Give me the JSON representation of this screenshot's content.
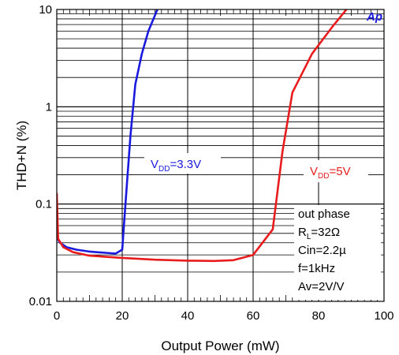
{
  "chart_data": {
    "type": "line",
    "xlabel": "Output Power (mW)",
    "ylabel": "THD+N (%)",
    "xlim": [
      0,
      100
    ],
    "ylim": [
      0.01,
      10
    ],
    "y_scale": "log",
    "grid": true,
    "x_ticks": [
      "0",
      "20",
      "40",
      "60",
      "80",
      "100"
    ],
    "y_ticks": [
      {
        "value": 0.01,
        "label": "0.01"
      },
      {
        "value": 0.1,
        "label": "0.1"
      },
      {
        "value": 1,
        "label": "1"
      },
      {
        "value": 10,
        "label": "10"
      }
    ],
    "series": [
      {
        "name_main": "V",
        "name_sub": "DD",
        "name_rest": "=3.3V",
        "color": "#1a1adf",
        "points": [
          [
            0,
            0.045
          ],
          [
            1,
            0.04
          ],
          [
            3,
            0.036
          ],
          [
            6,
            0.034
          ],
          [
            10,
            0.0325
          ],
          [
            15,
            0.0315
          ],
          [
            18,
            0.031
          ],
          [
            20,
            0.034
          ],
          [
            21,
            0.1
          ],
          [
            22.5,
            0.5
          ],
          [
            24,
            1.7
          ],
          [
            26,
            3.5
          ],
          [
            28,
            6
          ],
          [
            31,
            10.5
          ]
        ]
      },
      {
        "name_main": "V",
        "name_sub": "DD",
        "name_rest": "=5V",
        "color": "#e81c1c",
        "points": [
          [
            0,
            0.13
          ],
          [
            0.4,
            0.044
          ],
          [
            2,
            0.036
          ],
          [
            5,
            0.032
          ],
          [
            10,
            0.0295
          ],
          [
            20,
            0.028
          ],
          [
            30,
            0.0268
          ],
          [
            40,
            0.0262
          ],
          [
            48,
            0.026
          ],
          [
            54,
            0.0265
          ],
          [
            60,
            0.03
          ],
          [
            66,
            0.055
          ],
          [
            69,
            0.35
          ],
          [
            72,
            1.4
          ],
          [
            78,
            3.5
          ],
          [
            84,
            6.5
          ],
          [
            89,
            10.5
          ]
        ]
      }
    ],
    "annotations": {
      "conditions": [
        {
          "main": "out phase",
          "sub": "",
          "rest": ""
        },
        {
          "main": "R",
          "sub": "L",
          "rest": "=32Ω"
        },
        {
          "main": "Cin=2.2µ",
          "sub": "",
          "rest": ""
        },
        {
          "main": "f=1kHz",
          "sub": "",
          "rest": ""
        },
        {
          "main": "Av=2V/V",
          "sub": "",
          "rest": ""
        }
      ],
      "logo": "Ap"
    }
  }
}
